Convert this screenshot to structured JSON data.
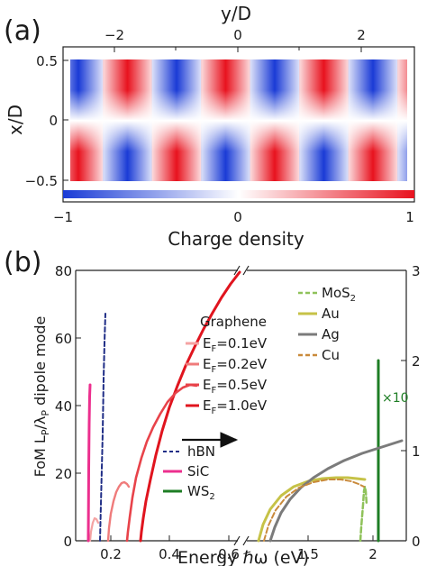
{
  "panel_a": {
    "label": "(a)",
    "top_axis_label": "y/D",
    "left_axis_label": "x/D",
    "top_ticks": [
      "−2",
      "0",
      "2"
    ],
    "left_ticks": [
      "0.5",
      "0",
      "−0.5"
    ],
    "colorbar_ticks": [
      "−1",
      "0",
      "1"
    ],
    "colorbar_label": "Charge density",
    "colors": {
      "positive": "#e8121e",
      "negative": "#1a3bd6",
      "zero": "#ffffff"
    }
  },
  "panel_b": {
    "label": "(b)",
    "ylabel_left": "FoM L",
    "ylabel_sub1": "P",
    "ylabel_mid": "/λ",
    "ylabel_sub2": "P",
    "ylabel_tail": " dipole mode",
    "xlabel": "Energy ℏω (eV)",
    "left_ticks": [
      "0",
      "20",
      "40",
      "60",
      "80"
    ],
    "right_ticks": [
      "0",
      "1",
      "2",
      "3"
    ],
    "x_ticks_left": [
      "0.2",
      "0.4",
      "0.6"
    ],
    "x_ticks_right": [
      "1.5",
      "2"
    ],
    "graphene_title": "Graphene",
    "graphene_legend": [
      {
        "prefix": "E",
        "sub": "F",
        "value": "=0.1eV",
        "color": "#f4a3a3"
      },
      {
        "prefix": "E",
        "sub": "F",
        "value": "=0.2eV",
        "color": "#ef7b7b"
      },
      {
        "prefix": "E",
        "sub": "F",
        "value": "=0.5eV",
        "color": "#e8434a"
      },
      {
        "prefix": "E",
        "sub": "F",
        "value": "=1.0eV",
        "color": "#e0141e"
      }
    ],
    "left_legend": [
      {
        "label": "hBN",
        "color": "#1f2d86"
      },
      {
        "label": "SiC",
        "color": "#ec2f8e"
      },
      {
        "label": "WS",
        "sub": "2",
        "color": "#1e7d24"
      }
    ],
    "right_legend": [
      {
        "label": "MoS",
        "sub": "2",
        "color": "#8fc25a"
      },
      {
        "label": "Au",
        "color": "#c6c247"
      },
      {
        "label": "Ag",
        "color": "#7b7b7b"
      },
      {
        "label": "Cu",
        "color": "#c98a3b"
      }
    ],
    "annotation": "×10"
  }
}
